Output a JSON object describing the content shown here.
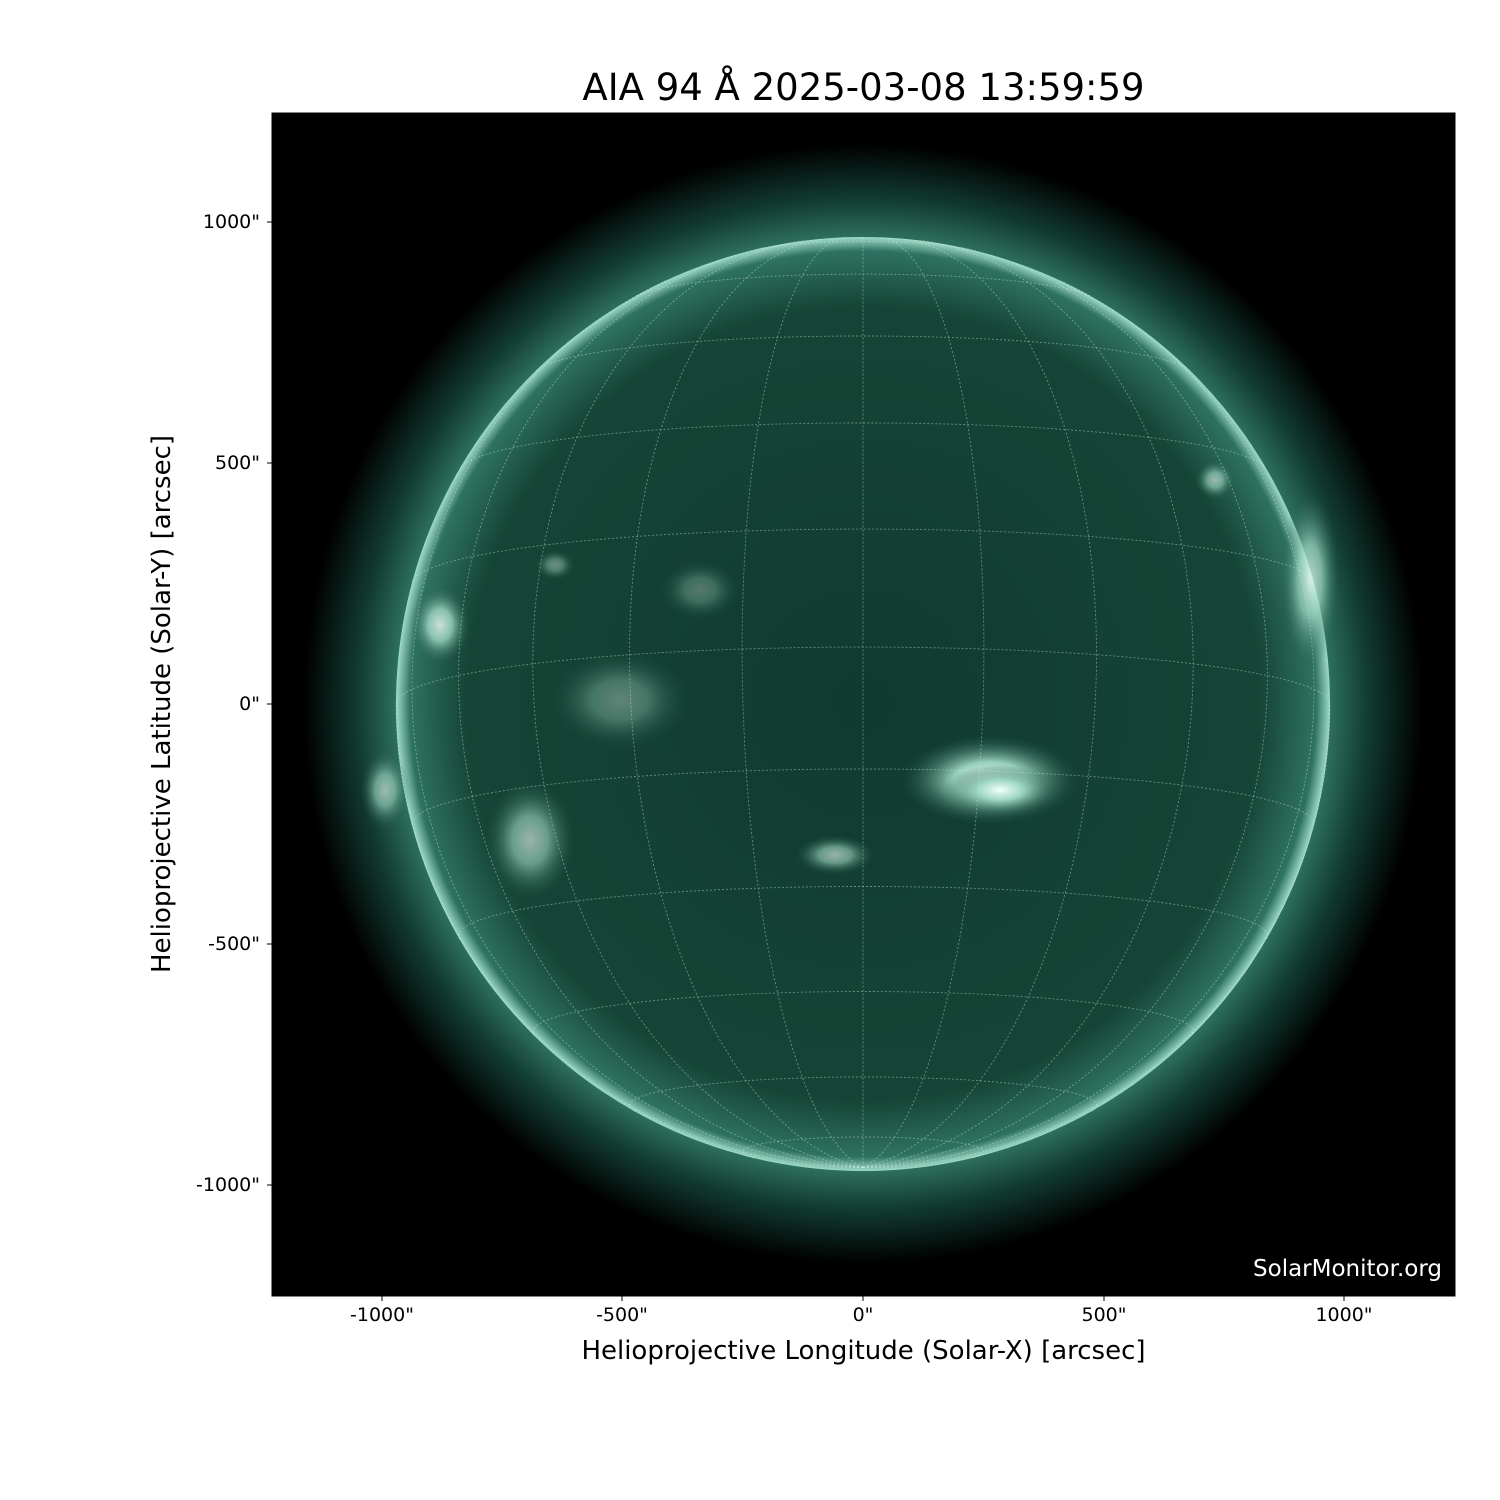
{
  "title": "AIA 94 Å 2025-03-08 13:59:59",
  "xlabel": "Helioprojective Longitude (Solar-X) [arcsec]",
  "ylabel": "Helioprojective Latitude (Solar-Y) [arcsec]",
  "x_ticks": [
    "-1000\"",
    "-500\"",
    "0\"",
    "500\"",
    "1000\""
  ],
  "y_ticks": [
    "1000\"",
    "500\"",
    "0\"",
    "-500\"",
    "-1000\""
  ],
  "credit": "SolarMonitor.org",
  "colors": {
    "background": "#000000",
    "disk": "#0f3b30",
    "limb": "#9fdcc8",
    "grid": "#cfe8df"
  }
}
